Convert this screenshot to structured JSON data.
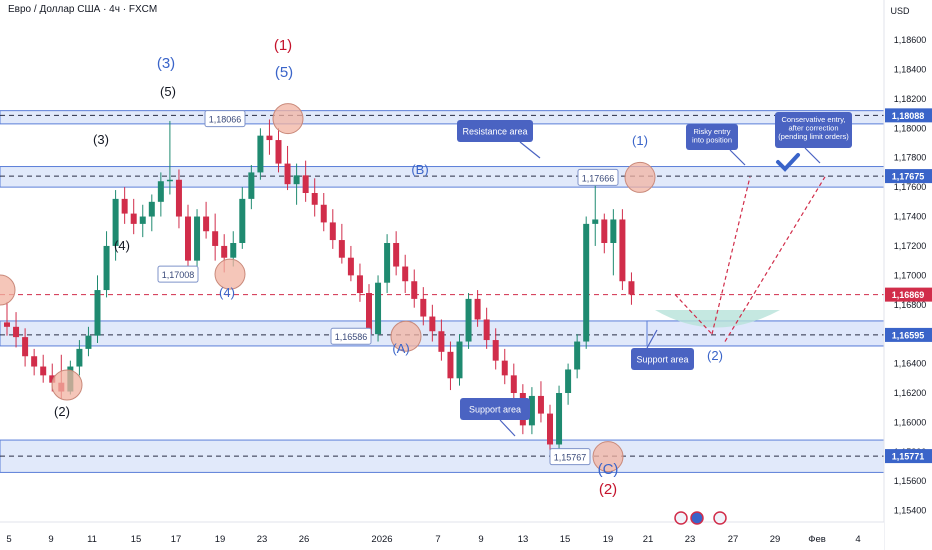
{
  "header": {
    "symbol_line": "Евро / Доллар США · 4ч · FXCM"
  },
  "colors": {
    "bull": "#1f8a70",
    "bear": "#d12d4a",
    "zone_fill": "#c9d7f5",
    "zone_border": "#5b7ed8",
    "dash": "#2a2e45",
    "wave_blue": "#3a64c9",
    "wave_red": "#c4122b",
    "wave_black": "#131722",
    "marker": "#f2b3a2",
    "arrow": "#d12d4a",
    "tag_fill": "#4a63c2",
    "support_bowl": "#b7e2d9",
    "price_tag_red": "#d12d4a",
    "price_tag_blue": "#3a64c9"
  },
  "chart_data": {
    "type": "candlestick",
    "currency_label": "USD",
    "ylim": [
      1.1529,
      1.1875
    ],
    "y_ticks": [
      "1,18600",
      "1,18400",
      "1,18200",
      "1,18000",
      "1,17800",
      "1,17600",
      "1,17400",
      "1,17200",
      "1,17000",
      "1,16800",
      "1,16600",
      "1,16400",
      "1,16200",
      "1,16000",
      "1,15800",
      "1,15600",
      "1,15400"
    ],
    "x_ticks": [
      "5",
      "9",
      "11",
      "15",
      "17",
      "19",
      "23",
      "26",
      "2026",
      "7",
      "9",
      "13",
      "15",
      "19",
      "21",
      "23",
      "27",
      "29",
      "Фев",
      "4"
    ],
    "candles": [
      [
        1.1668,
        1.1682,
        1.1659,
        1.1665
      ],
      [
        1.1665,
        1.1675,
        1.1651,
        1.1658
      ],
      [
        1.1658,
        1.1664,
        1.1638,
        1.1645
      ],
      [
        1.1645,
        1.165,
        1.1632,
        1.1638
      ],
      [
        1.1638,
        1.1646,
        1.1627,
        1.1632
      ],
      [
        1.1632,
        1.164,
        1.1621,
        1.1627
      ],
      [
        1.1627,
        1.1646,
        1.1616,
        1.1621
      ],
      [
        1.1621,
        1.1642,
        1.1619,
        1.1638
      ],
      [
        1.1638,
        1.1656,
        1.1632,
        1.165
      ],
      [
        1.165,
        1.1665,
        1.1645,
        1.1659
      ],
      [
        1.1659,
        1.17,
        1.1654,
        1.169
      ],
      [
        1.169,
        1.173,
        1.1685,
        1.172
      ],
      [
        1.172,
        1.1758,
        1.171,
        1.1752
      ],
      [
        1.1752,
        1.176,
        1.1735,
        1.1742
      ],
      [
        1.1742,
        1.1752,
        1.1728,
        1.1735
      ],
      [
        1.1735,
        1.1748,
        1.1726,
        1.174
      ],
      [
        1.174,
        1.1755,
        1.173,
        1.175
      ],
      [
        1.175,
        1.177,
        1.174,
        1.1764
      ],
      [
        1.1764,
        1.1805,
        1.1755,
        1.1765
      ],
      [
        1.1765,
        1.1772,
        1.1732,
        1.174
      ],
      [
        1.174,
        1.1748,
        1.17,
        1.171
      ],
      [
        1.171,
        1.1745,
        1.1705,
        1.174
      ],
      [
        1.174,
        1.175,
        1.1725,
        1.173
      ],
      [
        1.173,
        1.1742,
        1.171,
        1.172
      ],
      [
        1.172,
        1.1728,
        1.1702,
        1.1712
      ],
      [
        1.1712,
        1.173,
        1.1706,
        1.1722
      ],
      [
        1.1722,
        1.176,
        1.1718,
        1.1752
      ],
      [
        1.1752,
        1.1775,
        1.1745,
        1.177
      ],
      [
        1.177,
        1.18,
        1.1765,
        1.1795
      ],
      [
        1.1795,
        1.1806,
        1.1782,
        1.1792
      ],
      [
        1.1792,
        1.18,
        1.177,
        1.1776
      ],
      [
        1.1776,
        1.1788,
        1.1758,
        1.1762
      ],
      [
        1.1762,
        1.1776,
        1.1748,
        1.1768
      ],
      [
        1.1768,
        1.1778,
        1.175,
        1.1756
      ],
      [
        1.1756,
        1.1766,
        1.174,
        1.1748
      ],
      [
        1.1748,
        1.1756,
        1.173,
        1.1736
      ],
      [
        1.1736,
        1.1745,
        1.1718,
        1.1724
      ],
      [
        1.1724,
        1.1735,
        1.1708,
        1.1712
      ],
      [
        1.1712,
        1.172,
        1.1696,
        1.17
      ],
      [
        1.17,
        1.1708,
        1.1682,
        1.1688
      ],
      [
        1.1688,
        1.1694,
        1.1655,
        1.166
      ],
      [
        1.166,
        1.17,
        1.1655,
        1.1695
      ],
      [
        1.1695,
        1.1728,
        1.1688,
        1.1722
      ],
      [
        1.1722,
        1.173,
        1.17,
        1.1706
      ],
      [
        1.1706,
        1.1714,
        1.1688,
        1.1696
      ],
      [
        1.1696,
        1.1704,
        1.1678,
        1.1684
      ],
      [
        1.1684,
        1.1692,
        1.1666,
        1.1672
      ],
      [
        1.1672,
        1.168,
        1.1655,
        1.1662
      ],
      [
        1.1662,
        1.167,
        1.1642,
        1.1648
      ],
      [
        1.1648,
        1.1655,
        1.1622,
        1.163
      ],
      [
        1.163,
        1.166,
        1.1625,
        1.1655
      ],
      [
        1.1655,
        1.1688,
        1.165,
        1.1684
      ],
      [
        1.1684,
        1.169,
        1.1665,
        1.167
      ],
      [
        1.167,
        1.1678,
        1.165,
        1.1656
      ],
      [
        1.1656,
        1.1664,
        1.1636,
        1.1642
      ],
      [
        1.1642,
        1.165,
        1.1626,
        1.1632
      ],
      [
        1.1632,
        1.164,
        1.1614,
        1.162
      ],
      [
        1.162,
        1.1626,
        1.1592,
        1.1598
      ],
      [
        1.1598,
        1.1624,
        1.1592,
        1.1618
      ],
      [
        1.1618,
        1.1628,
        1.16,
        1.1606
      ],
      [
        1.1606,
        1.1612,
        1.1577,
        1.1585
      ],
      [
        1.1585,
        1.1625,
        1.158,
        1.162
      ],
      [
        1.162,
        1.164,
        1.1612,
        1.1636
      ],
      [
        1.1636,
        1.166,
        1.163,
        1.1655
      ],
      [
        1.1655,
        1.174,
        1.165,
        1.1735
      ],
      [
        1.1735,
        1.1767,
        1.172,
        1.1738
      ],
      [
        1.1738,
        1.1742,
        1.1715,
        1.1722
      ],
      [
        1.1722,
        1.1745,
        1.17,
        1.1738
      ],
      [
        1.1738,
        1.1745,
        1.169,
        1.1696
      ],
      [
        1.1696,
        1.1702,
        1.168,
        1.1687
      ]
    ],
    "zones": [
      {
        "label": "",
        "from": 1.1803,
        "to": 1.1812
      },
      {
        "label": "Resistance area",
        "from": 1.176,
        "to": 1.1774
      },
      {
        "label": "Support area",
        "from": 1.1652,
        "to": 1.1669
      },
      {
        "label": "Support area",
        "from": 1.1566,
        "to": 1.1588
      }
    ],
    "price_levels": [
      {
        "value": 1.18088,
        "label": "1,18088",
        "kind": "blue"
      },
      {
        "value": 1.17675,
        "label": "1,17675",
        "kind": "blue"
      },
      {
        "value": 1.16869,
        "label": "1,16869",
        "kind": "red"
      },
      {
        "value": 1.16595,
        "label": "1,16595",
        "kind": "blue"
      },
      {
        "value": 1.15771,
        "label": "1,15771",
        "kind": "blue"
      }
    ],
    "marked_points": [
      {
        "label": "1,18066",
        "value": 1.18066
      },
      {
        "label": "1,17666",
        "value": 1.17666
      },
      {
        "label": "1,17008",
        "value": 1.17008
      },
      {
        "label": "1,16586",
        "value": 1.16586
      },
      {
        "label": "1,15767",
        "value": 1.15767
      }
    ],
    "wave_labels": [
      {
        "text": "(1)",
        "color": "red"
      },
      {
        "text": "(5)",
        "color": "blue"
      },
      {
        "text": "(3)",
        "color": "blue"
      },
      {
        "text": "(5)",
        "color": "black"
      },
      {
        "text": "(3)",
        "color": "black"
      },
      {
        "text": "(4)",
        "color": "black"
      },
      {
        "text": "(4)",
        "color": "blue"
      },
      {
        "text": "(2)",
        "color": "black"
      },
      {
        "text": "(B)",
        "color": "blue"
      },
      {
        "text": "(A)",
        "color": "blue"
      },
      {
        "text": "(C)",
        "color": "blue"
      },
      {
        "text": "(2)",
        "color": "red"
      },
      {
        "text": "(1)",
        "color": "blue"
      },
      {
        "text": "(2)",
        "color": "blue"
      }
    ],
    "annotations": {
      "resistance": "Resistance area",
      "support_mid": "Support area",
      "support_low": "Support area",
      "risky_1": "Risky entry",
      "risky_2": "into position",
      "conservative_1": "Conservative entry,",
      "conservative_2": "after correction",
      "conservative_3": "(pending limit orders)"
    }
  }
}
